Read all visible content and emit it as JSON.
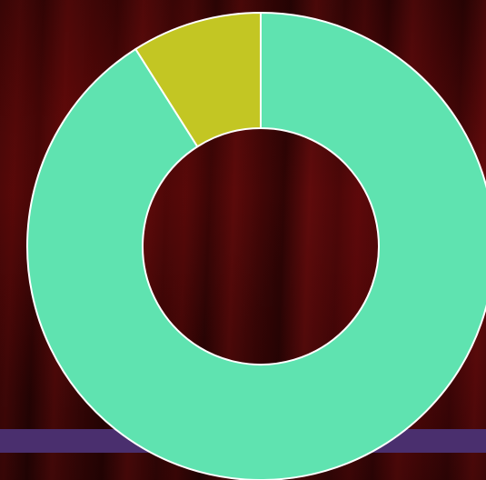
{
  "chart_data": {
    "type": "pie",
    "donut": true,
    "title": "",
    "slices": [
      {
        "value": 91,
        "color": "#5fe3b0"
      },
      {
        "value": 9,
        "color": "#c3c623"
      }
    ],
    "start_angle_deg": 0,
    "direction": "clockwise",
    "slice_border_color": "#ffffff",
    "legend": "none"
  },
  "background": {
    "curtain_color": "#4a0808",
    "stripe_color": "#4a2f6e"
  }
}
